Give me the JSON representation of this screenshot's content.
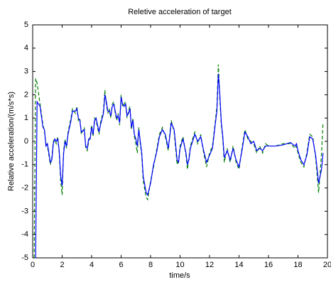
{
  "chart_data": {
    "type": "line",
    "title": "Reletive acceleration of target",
    "x_label": "time/s",
    "y_label": "Relative acceleration/(m/s*s)",
    "xlim": [
      0,
      20
    ],
    "xticks": [
      0,
      2,
      4,
      6,
      8,
      10,
      12,
      14,
      16,
      18,
      20
    ],
    "ylim": [
      -5,
      5
    ],
    "yticks": [
      -5,
      -4,
      -3,
      -2,
      -1,
      0,
      1,
      2,
      3,
      4,
      5
    ],
    "grid": false,
    "x": [
      0.1,
      0.2,
      0.3,
      0.5,
      0.7,
      0.8,
      0.9,
      1.0,
      1.1,
      1.2,
      1.3,
      1.4,
      1.5,
      1.6,
      1.7,
      1.8,
      1.9,
      2.0,
      2.1,
      2.2,
      2.3,
      2.4,
      2.6,
      2.7,
      2.9,
      3.0,
      3.1,
      3.2,
      3.3,
      3.5,
      3.6,
      3.7,
      3.8,
      3.9,
      4.0,
      4.1,
      4.2,
      4.3,
      4.5,
      4.6,
      4.8,
      4.9,
      5.0,
      5.1,
      5.2,
      5.3,
      5.4,
      5.5,
      5.6,
      5.7,
      5.8,
      5.9,
      6.0,
      6.1,
      6.2,
      6.3,
      6.4,
      6.5,
      6.6,
      6.7,
      6.8,
      6.9,
      7.0,
      7.1,
      7.2,
      7.3,
      7.4,
      7.5,
      7.7,
      7.8,
      8.0,
      8.2,
      8.4,
      8.6,
      8.8,
      9.0,
      9.2,
      9.3,
      9.4,
      9.6,
      9.8,
      9.9,
      10.0,
      10.2,
      10.4,
      10.5,
      10.6,
      10.7,
      10.8,
      11.0,
      11.2,
      11.4,
      11.6,
      11.8,
      12.0,
      12.2,
      12.4,
      12.5,
      12.6,
      12.7,
      12.8,
      12.9,
      13.0,
      13.2,
      13.4,
      13.6,
      13.8,
      14.0,
      14.2,
      14.4,
      14.6,
      14.8,
      15.0,
      15.2,
      15.4,
      15.6,
      15.8,
      16.0,
      16.5,
      17.0,
      17.5,
      17.8,
      17.9,
      18.0,
      18.2,
      18.4,
      18.6,
      18.8,
      19.0,
      19.2,
      19.4,
      19.5,
      19.6,
      19.7
    ],
    "series": [
      {
        "color": "#008000",
        "linestyle": "dashed",
        "values": [
          -5,
          2.7,
          2.5,
          1.6,
          0.7,
          0.4,
          -0.1,
          -0.2,
          -0.6,
          -1.0,
          -0.7,
          0.0,
          0.1,
          -0.1,
          0.2,
          -0.5,
          -1.7,
          -2.3,
          -0.4,
          0.1,
          -0.3,
          0.4,
          1.0,
          1.4,
          1.2,
          1.5,
          0.9,
          1.0,
          0.3,
          0.6,
          -0.3,
          -0.4,
          0.0,
          0.2,
          0.7,
          0.2,
          1.0,
          0.9,
          0.3,
          0.8,
          1.3,
          2.2,
          1.6,
          1.2,
          1.4,
          1.0,
          1.6,
          1.7,
          1.2,
          0.9,
          1.2,
          0.7,
          2.0,
          1.5,
          1.6,
          1.7,
          1.0,
          1.3,
          1.5,
          0.5,
          1.0,
          0.2,
          -0.1,
          -0.5,
          0.6,
          -0.1,
          -0.6,
          -1.7,
          -2.4,
          -2.5,
          -1.7,
          -1.1,
          -0.4,
          0.3,
          0.6,
          0.2,
          -0.4,
          0.3,
          0.9,
          0.4,
          -1.0,
          -0.8,
          -0.2,
          0.2,
          -0.6,
          -1.2,
          -0.7,
          -0.2,
          0.0,
          0.4,
          -0.1,
          0.3,
          -0.5,
          -1.1,
          -0.5,
          -0.2,
          0.9,
          1.5,
          3.3,
          1.8,
          0.7,
          0.1,
          -0.9,
          -0.3,
          -0.9,
          -0.2,
          -0.9,
          -1.2,
          -0.3,
          0.5,
          0.1,
          0.0,
          -0.1,
          -0.5,
          -0.2,
          -0.5,
          -0.1,
          -0.2,
          -0.2,
          -0.1,
          -0.1,
          -0.3,
          -0.2,
          -0.5,
          -0.9,
          -1.1,
          -0.5,
          0.3,
          0.2,
          -0.7,
          -2.2,
          -1.4,
          -0.5,
          0.8
        ]
      },
      {
        "color": "#0000ff",
        "linestyle": "solid",
        "values": [
          null,
          -5,
          1.7,
          1.5,
          0.6,
          0.5,
          -0.2,
          -0.1,
          -0.5,
          -0.9,
          -0.8,
          -0.1,
          0.1,
          0.0,
          0.1,
          -0.4,
          -1.5,
          -1.9,
          -0.5,
          0.0,
          -0.2,
          0.3,
          0.9,
          1.3,
          1.3,
          1.4,
          1.0,
          0.9,
          0.4,
          0.5,
          -0.2,
          -0.3,
          0.1,
          0.1,
          0.6,
          0.3,
          0.9,
          1.0,
          0.4,
          0.7,
          1.2,
          2.0,
          1.7,
          1.3,
          1.3,
          1.1,
          1.5,
          1.6,
          1.3,
          1.0,
          1.1,
          0.8,
          1.9,
          1.6,
          1.5,
          1.6,
          1.1,
          1.2,
          1.4,
          0.6,
          0.9,
          0.3,
          0.1,
          -0.2,
          0.5,
          0.0,
          -0.5,
          -1.5,
          -2.2,
          -2.3,
          -1.8,
          -1.0,
          -0.5,
          0.2,
          0.5,
          0.3,
          -0.3,
          0.2,
          0.8,
          0.5,
          -0.8,
          -0.9,
          -0.3,
          0.1,
          -0.5,
          -1.0,
          -0.8,
          -0.3,
          -0.1,
          0.3,
          0.0,
          0.2,
          -0.4,
          -0.9,
          -0.6,
          -0.3,
          0.8,
          1.3,
          2.9,
          2.0,
          0.8,
          0.2,
          -0.7,
          -0.4,
          -0.8,
          -0.3,
          -0.8,
          -1.1,
          -0.4,
          0.4,
          0.2,
          -0.1,
          0.0,
          -0.4,
          -0.3,
          -0.4,
          -0.2,
          -0.2,
          -0.2,
          -0.15,
          -0.05,
          -0.2,
          -0.1,
          -0.4,
          -0.8,
          -1.0,
          -0.6,
          0.2,
          0.1,
          -0.6,
          -1.8,
          -1.5,
          -1.2,
          -0.5
        ]
      }
    ]
  }
}
